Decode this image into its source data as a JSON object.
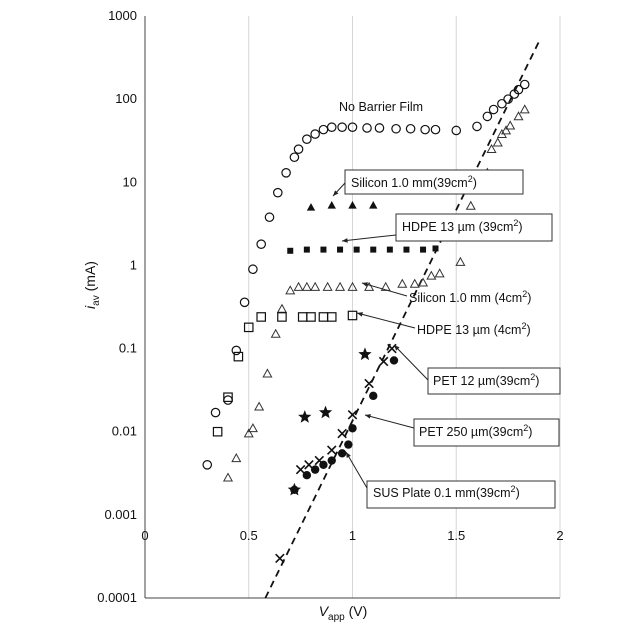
{
  "chart_data": {
    "type": "scatter",
    "title": "",
    "xlabel": "V",
    "xlabel_sub": "app",
    "xlabel_unit": "(V)",
    "ylabel": "i",
    "ylabel_sub": "av",
    "ylabel_unit": "(mA)",
    "x_scale": "linear",
    "y_scale": "log",
    "xlim": [
      0,
      2
    ],
    "ylim": [
      0.0001,
      1000
    ],
    "x_ticks": [
      0,
      0.5,
      1,
      1.5,
      2
    ],
    "x_tick_labels": [
      "0",
      "0.5",
      "1",
      "1.5",
      "2"
    ],
    "y_ticks": [
      0.0001,
      0.001,
      0.01,
      0.1,
      1,
      10,
      100,
      1000
    ],
    "y_tick_labels": [
      "0.0001",
      "0.001",
      "0.01",
      "0.1",
      "1",
      "10",
      "100",
      "1000"
    ],
    "grid": "vertical",
    "series": [
      {
        "name": "No Barrier Film",
        "marker": "open-circle",
        "points": [
          [
            0.3,
            0.004
          ],
          [
            0.34,
            0.017
          ],
          [
            0.4,
            0.024
          ],
          [
            0.44,
            0.095
          ],
          [
            0.48,
            0.36
          ],
          [
            0.52,
            0.9
          ],
          [
            0.56,
            1.8
          ],
          [
            0.6,
            3.8
          ],
          [
            0.64,
            7.5
          ],
          [
            0.68,
            13
          ],
          [
            0.72,
            20
          ],
          [
            0.74,
            25
          ],
          [
            0.78,
            33
          ],
          [
            0.82,
            38
          ],
          [
            0.86,
            43
          ],
          [
            0.9,
            46
          ],
          [
            0.95,
            46
          ],
          [
            1.0,
            46
          ],
          [
            1.07,
            45
          ],
          [
            1.13,
            45
          ],
          [
            1.21,
            44
          ],
          [
            1.28,
            44
          ],
          [
            1.35,
            43
          ],
          [
            1.4,
            43
          ],
          [
            1.5,
            42
          ],
          [
            1.6,
            47
          ],
          [
            1.65,
            62
          ],
          [
            1.68,
            75
          ],
          [
            1.72,
            88
          ],
          [
            1.75,
            100
          ],
          [
            1.78,
            115
          ],
          [
            1.8,
            130
          ],
          [
            1.83,
            150
          ]
        ]
      },
      {
        "name": "Silicon 1.0 mm(39cm²)",
        "marker": "filled-triangle",
        "points": [
          [
            0.8,
            5
          ],
          [
            0.9,
            5.3
          ],
          [
            1.0,
            5.3
          ],
          [
            1.1,
            5.3
          ]
        ]
      },
      {
        "name": "HDPE 13 µm (39cm²)",
        "marker": "filled-square",
        "points": [
          [
            0.7,
            1.5
          ],
          [
            0.78,
            1.55
          ],
          [
            0.86,
            1.55
          ],
          [
            0.94,
            1.55
          ],
          [
            1.02,
            1.55
          ],
          [
            1.1,
            1.55
          ],
          [
            1.18,
            1.55
          ],
          [
            1.26,
            1.55
          ],
          [
            1.34,
            1.55
          ],
          [
            1.4,
            1.6
          ]
        ]
      },
      {
        "name": "Silicon 1.0 mm (4cm²)",
        "marker": "open-triangle",
        "points": [
          [
            0.4,
            0.0028
          ],
          [
            0.44,
            0.0048
          ],
          [
            0.5,
            0.0095
          ],
          [
            0.52,
            0.011
          ],
          [
            0.55,
            0.02
          ],
          [
            0.59,
            0.05
          ],
          [
            0.63,
            0.15
          ],
          [
            0.66,
            0.3
          ],
          [
            0.7,
            0.5
          ],
          [
            0.74,
            0.55
          ],
          [
            0.78,
            0.55
          ],
          [
            0.82,
            0.55
          ],
          [
            0.88,
            0.55
          ],
          [
            0.94,
            0.55
          ],
          [
            1.0,
            0.55
          ],
          [
            1.08,
            0.55
          ],
          [
            1.16,
            0.55
          ],
          [
            1.24,
            0.6
          ],
          [
            1.3,
            0.6
          ],
          [
            1.34,
            0.62
          ],
          [
            1.38,
            0.75
          ],
          [
            1.42,
            0.8
          ],
          [
            1.52,
            1.1
          ],
          [
            1.57,
            5.2
          ],
          [
            1.65,
            13
          ],
          [
            1.67,
            25
          ],
          [
            1.7,
            30
          ],
          [
            1.72,
            38
          ],
          [
            1.74,
            42
          ],
          [
            1.76,
            48
          ],
          [
            1.8,
            62
          ],
          [
            1.83,
            75
          ]
        ]
      },
      {
        "name": "HDPE 13 µm (4cm²)",
        "marker": "open-square",
        "points": [
          [
            0.35,
            0.01
          ],
          [
            0.4,
            0.026
          ],
          [
            0.45,
            0.08
          ],
          [
            0.5,
            0.18
          ],
          [
            0.56,
            0.24
          ],
          [
            0.66,
            0.24
          ],
          [
            0.76,
            0.24
          ],
          [
            0.8,
            0.24
          ],
          [
            0.86,
            0.24
          ],
          [
            0.9,
            0.24
          ],
          [
            1.0,
            0.25
          ]
        ]
      },
      {
        "name": "PET 12 µm(39cm²)",
        "marker": "cross",
        "points": [
          [
            0.65,
            0.0003
          ],
          [
            0.75,
            0.0035
          ],
          [
            0.79,
            0.004
          ],
          [
            0.84,
            0.0045
          ],
          [
            0.9,
            0.006
          ],
          [
            0.95,
            0.0095
          ],
          [
            1.0,
            0.016
          ],
          [
            1.08,
            0.038
          ],
          [
            1.15,
            0.07
          ],
          [
            1.19,
            0.1
          ]
        ]
      },
      {
        "name": "PET 250 µm(39cm²)",
        "marker": "filled-star",
        "points": [
          [
            0.72,
            0.002
          ],
          [
            0.77,
            0.015
          ],
          [
            0.87,
            0.017
          ],
          [
            1.06,
            0.085
          ]
        ]
      },
      {
        "name": "SUS Plate 0.1 mm(39cm²)",
        "marker": "filled-circle",
        "points": [
          [
            0.72,
            0.002
          ],
          [
            0.78,
            0.003
          ],
          [
            0.82,
            0.0035
          ],
          [
            0.86,
            0.004
          ],
          [
            0.9,
            0.0045
          ],
          [
            0.95,
            0.0055
          ],
          [
            0.98,
            0.007
          ],
          [
            1.0,
            0.011
          ],
          [
            1.1,
            0.027
          ],
          [
            1.2,
            0.072
          ]
        ]
      }
    ],
    "trend_line": {
      "style": "dashed",
      "from": [
        0.58,
        0.0001
      ],
      "to": [
        1.9,
        500
      ]
    },
    "annotations": [
      {
        "text": "No Barrier Film",
        "boxed": false,
        "series": "No Barrier Film"
      },
      {
        "text_main": "Silicon 1.0 mm(39cm",
        "text_sup": "2",
        "text_end": ")",
        "boxed": true
      },
      {
        "text_main": "HDPE 13 µm (39cm",
        "text_sup": "2",
        "text_end": ")",
        "boxed": true
      },
      {
        "text_main": "Silicon  1.0 mm (4cm",
        "text_sup": "2",
        "text_end": ")",
        "boxed": false
      },
      {
        "text_main": "HDPE 13 µm (4cm",
        "text_sup": "2",
        "text_end": ")",
        "boxed": false
      },
      {
        "text_main": "PET 12 µm(39cm",
        "text_sup": "2",
        "text_end": ")",
        "boxed": true
      },
      {
        "text_main": "PET 250 µm(39cm",
        "text_sup": "2",
        "text_end": ")",
        "boxed": true
      },
      {
        "text_main": "SUS  Plate  0.1 mm(39cm",
        "text_sup": "2",
        "text_end": ")",
        "boxed": true
      }
    ]
  }
}
